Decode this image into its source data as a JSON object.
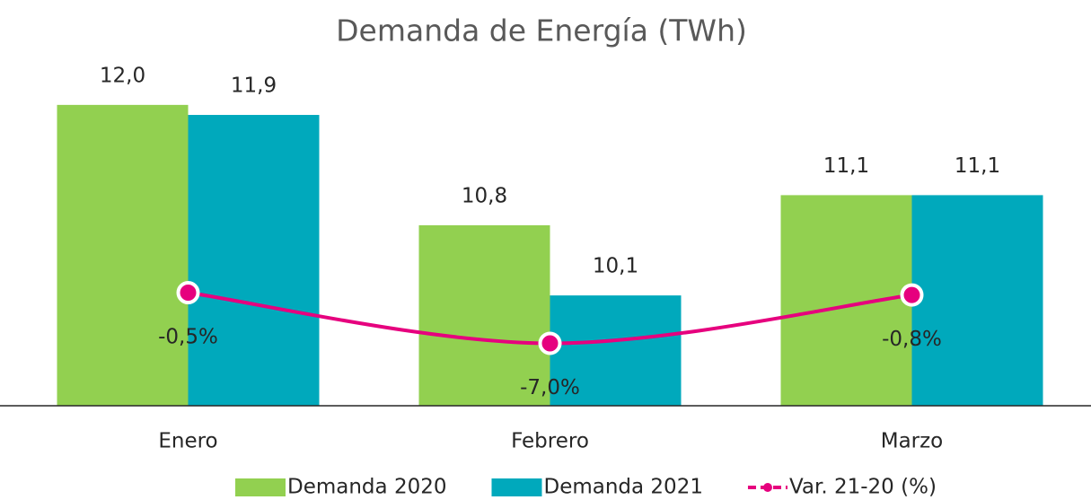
{
  "chart_data": {
    "type": "bar",
    "title": "Demanda de Energía (TWh)",
    "categories": [
      "Enero",
      "Febrero",
      "Marzo"
    ],
    "series": [
      {
        "name": "Demanda 2020",
        "color": "#92d050",
        "values": [
          12.0,
          10.8,
          11.1
        ],
        "value_labels": [
          "12,0",
          "10,8",
          "11,1"
        ]
      },
      {
        "name": "Demanda 2021",
        "color": "#00a9bc",
        "values": [
          11.9,
          10.1,
          11.1
        ],
        "value_labels": [
          "11,9",
          "10,1",
          "11,1"
        ]
      },
      {
        "name": "Var. 21-20 (%)",
        "color": "#e6007e",
        "type": "line",
        "axis": "y2",
        "values": [
          -0.5,
          -7.0,
          -0.8
        ],
        "value_labels": [
          "-0,5%",
          "-7,0%",
          "-0,8%"
        ]
      }
    ],
    "ylim": [
      9,
      12.5
    ],
    "y2lim": [
      -15,
      30
    ]
  }
}
